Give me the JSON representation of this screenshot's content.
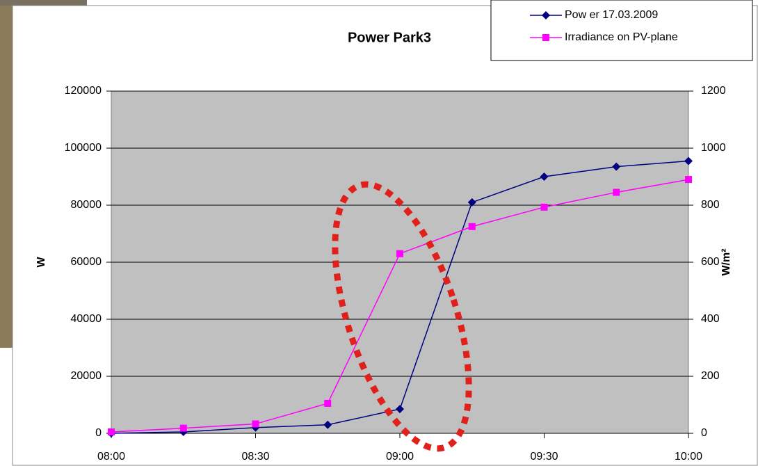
{
  "chart_data": {
    "type": "line",
    "title": "Power Park3",
    "x": [
      "08:00",
      "08:15",
      "08:30",
      "08:45",
      "09:00",
      "09:15",
      "09:30",
      "09:45",
      "10:00"
    ],
    "xlim": [
      "08:00",
      "10:00"
    ],
    "xticks": [
      "08:00",
      "08:30",
      "09:00",
      "09:30",
      "10:00"
    ],
    "y_label": "W",
    "y2_label": "W/m²",
    "ylim": [
      0,
      120000
    ],
    "yticks": [
      0,
      20000,
      40000,
      60000,
      80000,
      100000,
      120000
    ],
    "y2lim": [
      0,
      1200
    ],
    "y2ticks": [
      0,
      200,
      400,
      600,
      800,
      1000,
      1200
    ],
    "grid": true,
    "legend": "top-right",
    "series": [
      {
        "name": "Pow er 17.03.2009",
        "color": "#000080",
        "marker": "diamond",
        "values": [
          0,
          500,
          2000,
          3000,
          8500,
          81000,
          90000,
          93500,
          95500
        ]
      },
      {
        "name": "Irradiance on PV-plane",
        "color": "#ff00ff",
        "marker": "square",
        "axis": "y2",
        "values": [
          5,
          18,
          33,
          105,
          630,
          725,
          793,
          845,
          890
        ]
      }
    ]
  }
}
